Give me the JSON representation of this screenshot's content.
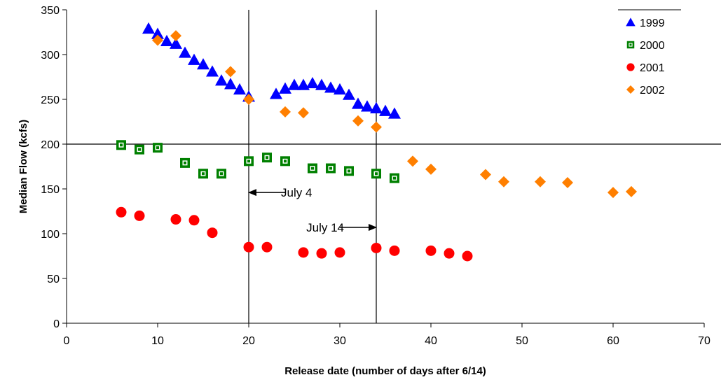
{
  "chart_data": {
    "type": "scatter",
    "title": "",
    "xlabel": "Release date (number of days after 6/14)",
    "ylabel": "Median Flow (kcfs)",
    "xlim": [
      0,
      70
    ],
    "ylim": [
      0,
      350
    ],
    "xticks": [
      0,
      10,
      20,
      30,
      40,
      50,
      60,
      70
    ],
    "yticks": [
      0,
      50,
      100,
      150,
      200,
      250,
      300,
      350
    ],
    "grid": false,
    "legend_position": "top-right",
    "series": [
      {
        "name": "1999",
        "marker": "triangle",
        "color": "#0000ff",
        "points": [
          [
            9,
            329
          ],
          [
            10,
            323
          ],
          [
            11,
            315
          ],
          [
            12,
            312
          ],
          [
            13,
            302
          ],
          [
            14,
            294
          ],
          [
            15,
            289
          ],
          [
            16,
            281
          ],
          [
            17,
            271
          ],
          [
            18,
            267
          ],
          [
            19,
            261
          ],
          [
            20,
            253
          ],
          [
            23,
            256
          ],
          [
            24,
            262
          ],
          [
            25,
            266
          ],
          [
            26,
            266
          ],
          [
            27,
            268
          ],
          [
            28,
            266
          ],
          [
            29,
            263
          ],
          [
            30,
            261
          ],
          [
            31,
            255
          ],
          [
            32,
            245
          ],
          [
            33,
            242
          ],
          [
            34,
            240
          ],
          [
            35,
            237
          ],
          [
            36,
            234
          ]
        ]
      },
      {
        "name": "2000",
        "marker": "square",
        "color": "#008000",
        "points": [
          [
            6,
            199
          ],
          [
            8,
            194
          ],
          [
            10,
            196
          ],
          [
            13,
            179
          ],
          [
            15,
            167
          ],
          [
            17,
            167
          ],
          [
            20,
            181
          ],
          [
            22,
            185
          ],
          [
            24,
            181
          ],
          [
            27,
            173
          ],
          [
            29,
            173
          ],
          [
            31,
            170
          ],
          [
            34,
            167
          ],
          [
            36,
            162
          ]
        ]
      },
      {
        "name": "2001",
        "marker": "circle",
        "color": "#ff0000",
        "points": [
          [
            6,
            124
          ],
          [
            8,
            120
          ],
          [
            12,
            116
          ],
          [
            14,
            115
          ],
          [
            16,
            101
          ],
          [
            20,
            85
          ],
          [
            22,
            85
          ],
          [
            26,
            79
          ],
          [
            28,
            78
          ],
          [
            30,
            79
          ],
          [
            34,
            84
          ],
          [
            36,
            81
          ],
          [
            40,
            81
          ],
          [
            42,
            78
          ],
          [
            44,
            75
          ]
        ]
      },
      {
        "name": "2002",
        "marker": "diamond",
        "color": "#ff7f00",
        "points": [
          [
            10,
            316
          ],
          [
            12,
            321
          ],
          [
            18,
            281
          ],
          [
            20,
            250
          ],
          [
            24,
            236
          ],
          [
            26,
            235
          ],
          [
            32,
            226
          ],
          [
            34,
            219
          ],
          [
            38,
            181
          ],
          [
            40,
            172
          ],
          [
            46,
            166
          ],
          [
            48,
            158
          ],
          [
            52,
            158
          ],
          [
            55,
            157
          ],
          [
            60,
            146
          ],
          [
            62,
            147
          ]
        ]
      }
    ],
    "reference_lines": {
      "vertical_x": [
        20,
        34
      ],
      "horizontal_y": [
        200
      ]
    },
    "annotations": [
      {
        "text": "July 4",
        "arrow_from": [
          24,
          146
        ],
        "arrow_to": [
          20,
          146
        ],
        "arrow_direction": "left"
      },
      {
        "text": "July 14",
        "arrow_from": [
          30,
          107
        ],
        "arrow_to": [
          34,
          107
        ],
        "arrow_direction": "right"
      }
    ]
  }
}
